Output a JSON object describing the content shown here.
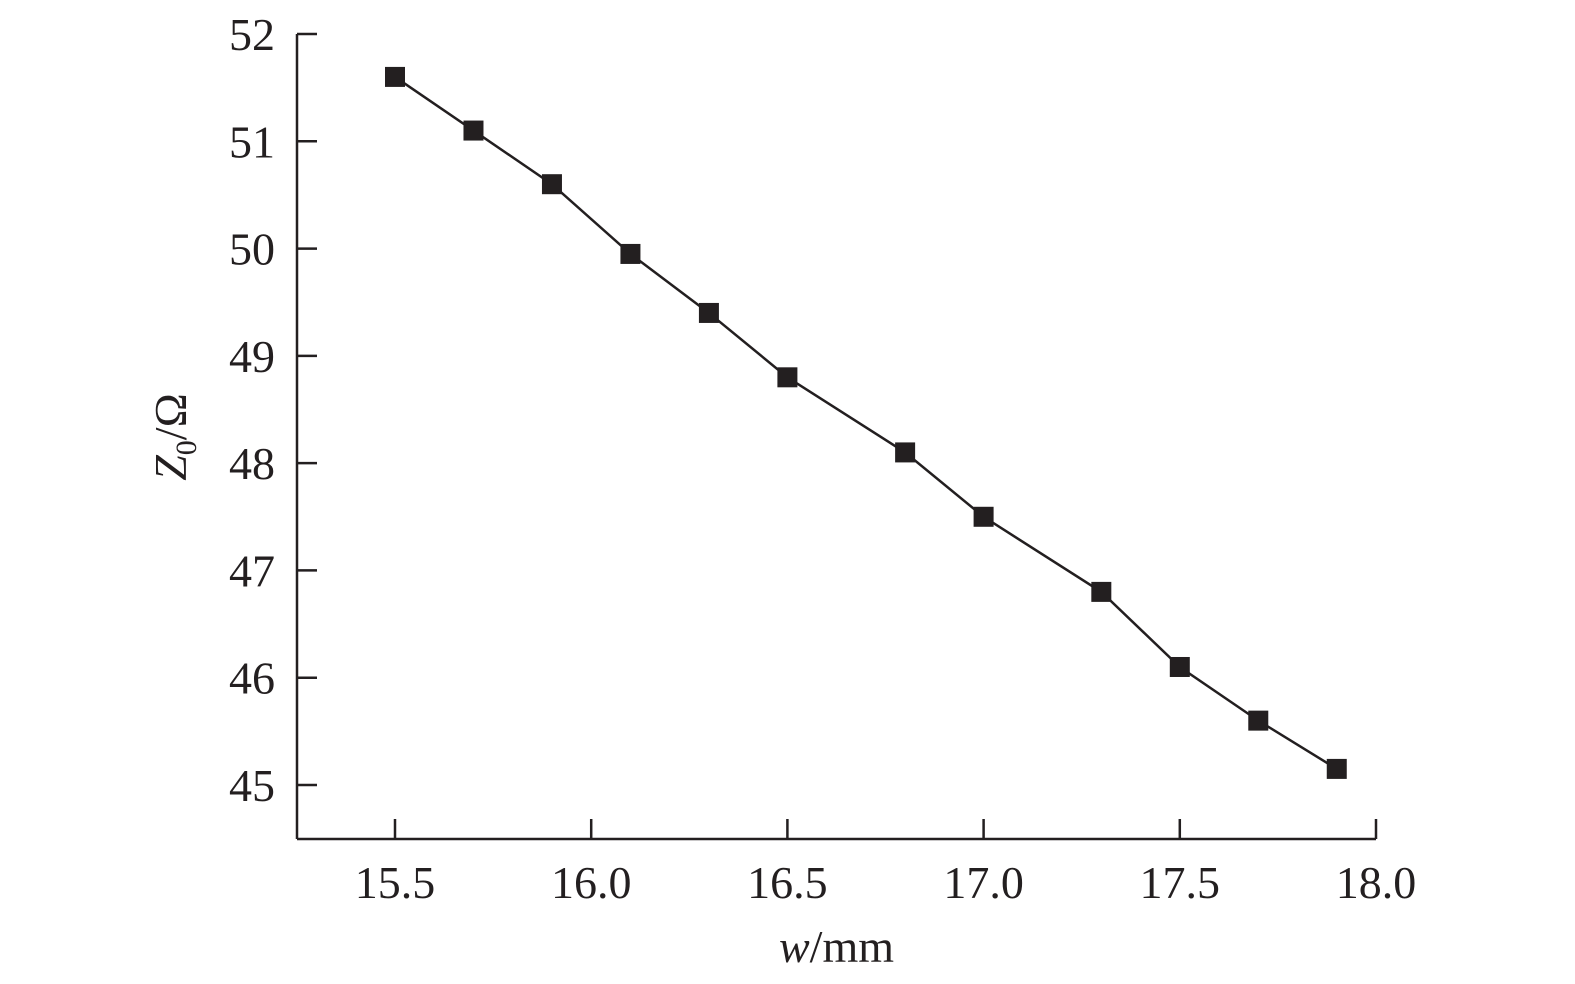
{
  "chart_data": {
    "type": "line",
    "title": "",
    "xlabel": {
      "var": "w",
      "unit": "/mm"
    },
    "ylabel": {
      "var": "Z",
      "sub": "0",
      "unit": "/Ω"
    },
    "xlim": [
      15.25,
      18.0
    ],
    "ylim": [
      44.5,
      52.0
    ],
    "xticks": [
      "15.5",
      "16.0",
      "16.5",
      "17.0",
      "17.5",
      "18.0"
    ],
    "xtick_values": [
      15.5,
      16.0,
      16.5,
      17.0,
      17.5,
      18.0
    ],
    "yticks": [
      "45",
      "46",
      "47",
      "48",
      "49",
      "50",
      "51",
      "52"
    ],
    "ytick_values": [
      45,
      46,
      47,
      48,
      49,
      50,
      51,
      52
    ],
    "grid": false,
    "marker": "square",
    "color": "#231f20",
    "series": [
      {
        "x": [
          15.5,
          15.7,
          15.9,
          16.1,
          16.3,
          16.5,
          16.8,
          17.0,
          17.3,
          17.5,
          17.7,
          17.9
        ],
        "values": [
          51.6,
          51.1,
          50.6,
          49.95,
          49.4,
          48.8,
          48.1,
          47.5,
          46.8,
          46.1,
          45.6,
          45.15
        ]
      }
    ]
  }
}
